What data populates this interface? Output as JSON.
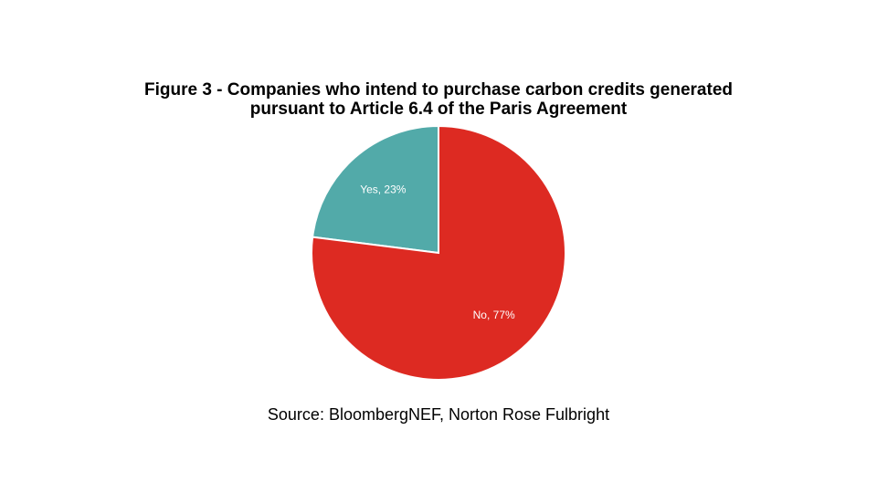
{
  "chart_data": {
    "type": "pie",
    "title": [
      "Figure 3 - Companies who intend to purchase carbon credits generated",
      "pursuant to Article 6.4 of the Paris Agreement"
    ],
    "values": [
      23,
      77
    ],
    "value_labels": [
      "Yes, 23%",
      "No, 77%"
    ],
    "colors": [
      "#52aaa9",
      "#dd2a22"
    ],
    "source": "Source: BloombergNEF, Norton Rose Fulbright"
  }
}
